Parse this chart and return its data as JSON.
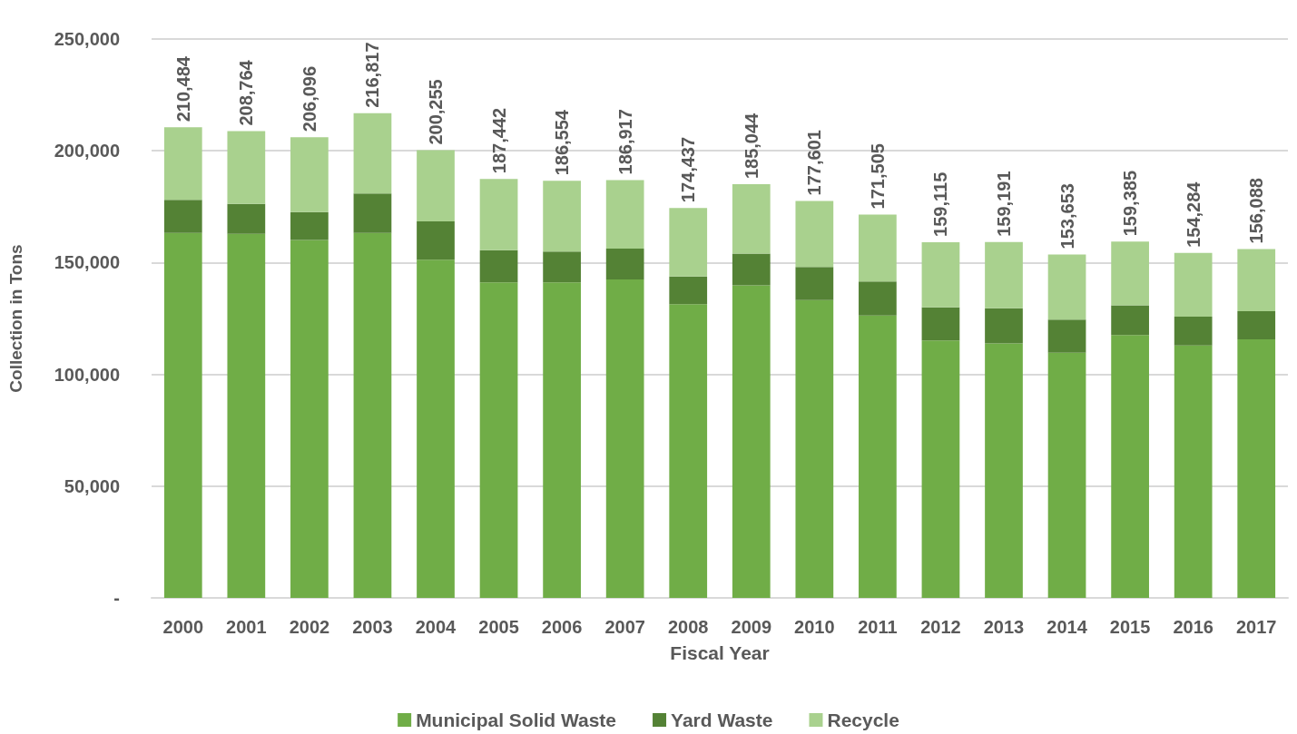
{
  "chart_data": {
    "type": "bar",
    "stacked": true,
    "xlabel": "Fiscal Year",
    "ylabel": "Collection in Tons",
    "categories": [
      "2000",
      "2001",
      "2002",
      "2003",
      "2004",
      "2005",
      "2006",
      "2007",
      "2008",
      "2009",
      "2010",
      "2011",
      "2012",
      "2013",
      "2014",
      "2015",
      "2016",
      "2017"
    ],
    "series": [
      {
        "name": "Municipal Solid Waste",
        "color": "#70ad47",
        "values": [
          163300,
          162800,
          160100,
          163300,
          151300,
          141100,
          141100,
          142500,
          131400,
          139800,
          133200,
          126300,
          115200,
          113800,
          109700,
          117600,
          112900,
          115700
        ]
      },
      {
        "name": "Yard Waste",
        "color": "#548235",
        "values": [
          14800,
          13400,
          12500,
          17600,
          17100,
          14400,
          13800,
          13800,
          12400,
          14200,
          14800,
          15200,
          14800,
          15800,
          14800,
          13300,
          12900,
          12500
        ]
      },
      {
        "name": "Recycle",
        "color": "#a9d18e",
        "values": [
          32384,
          32564,
          33496,
          35917,
          31855,
          31942,
          31654,
          30617,
          30637,
          31044,
          29601,
          30005,
          29115,
          29591,
          29153,
          28485,
          28484,
          27888
        ]
      }
    ],
    "totals": [
      "210,484",
      "208,764",
      "206,096",
      "216,817",
      "200,255",
      "187,442",
      "186,554",
      "186,917",
      "174,437",
      "185,044",
      "177,601",
      "171,505",
      "159,115",
      "159,191",
      "153,653",
      "159,385",
      "154,284",
      "156,088"
    ],
    "ylim": [
      0,
      250000
    ],
    "yticks": [
      {
        "value": 0,
        "label": "-"
      },
      {
        "value": 50000,
        "label": "50,000"
      },
      {
        "value": 100000,
        "label": "100,000"
      },
      {
        "value": 150000,
        "label": "150,000"
      },
      {
        "value": 200000,
        "label": "200,000"
      },
      {
        "value": 250000,
        "label": "250,000"
      }
    ],
    "grid": "y",
    "legend": "bottom"
  }
}
